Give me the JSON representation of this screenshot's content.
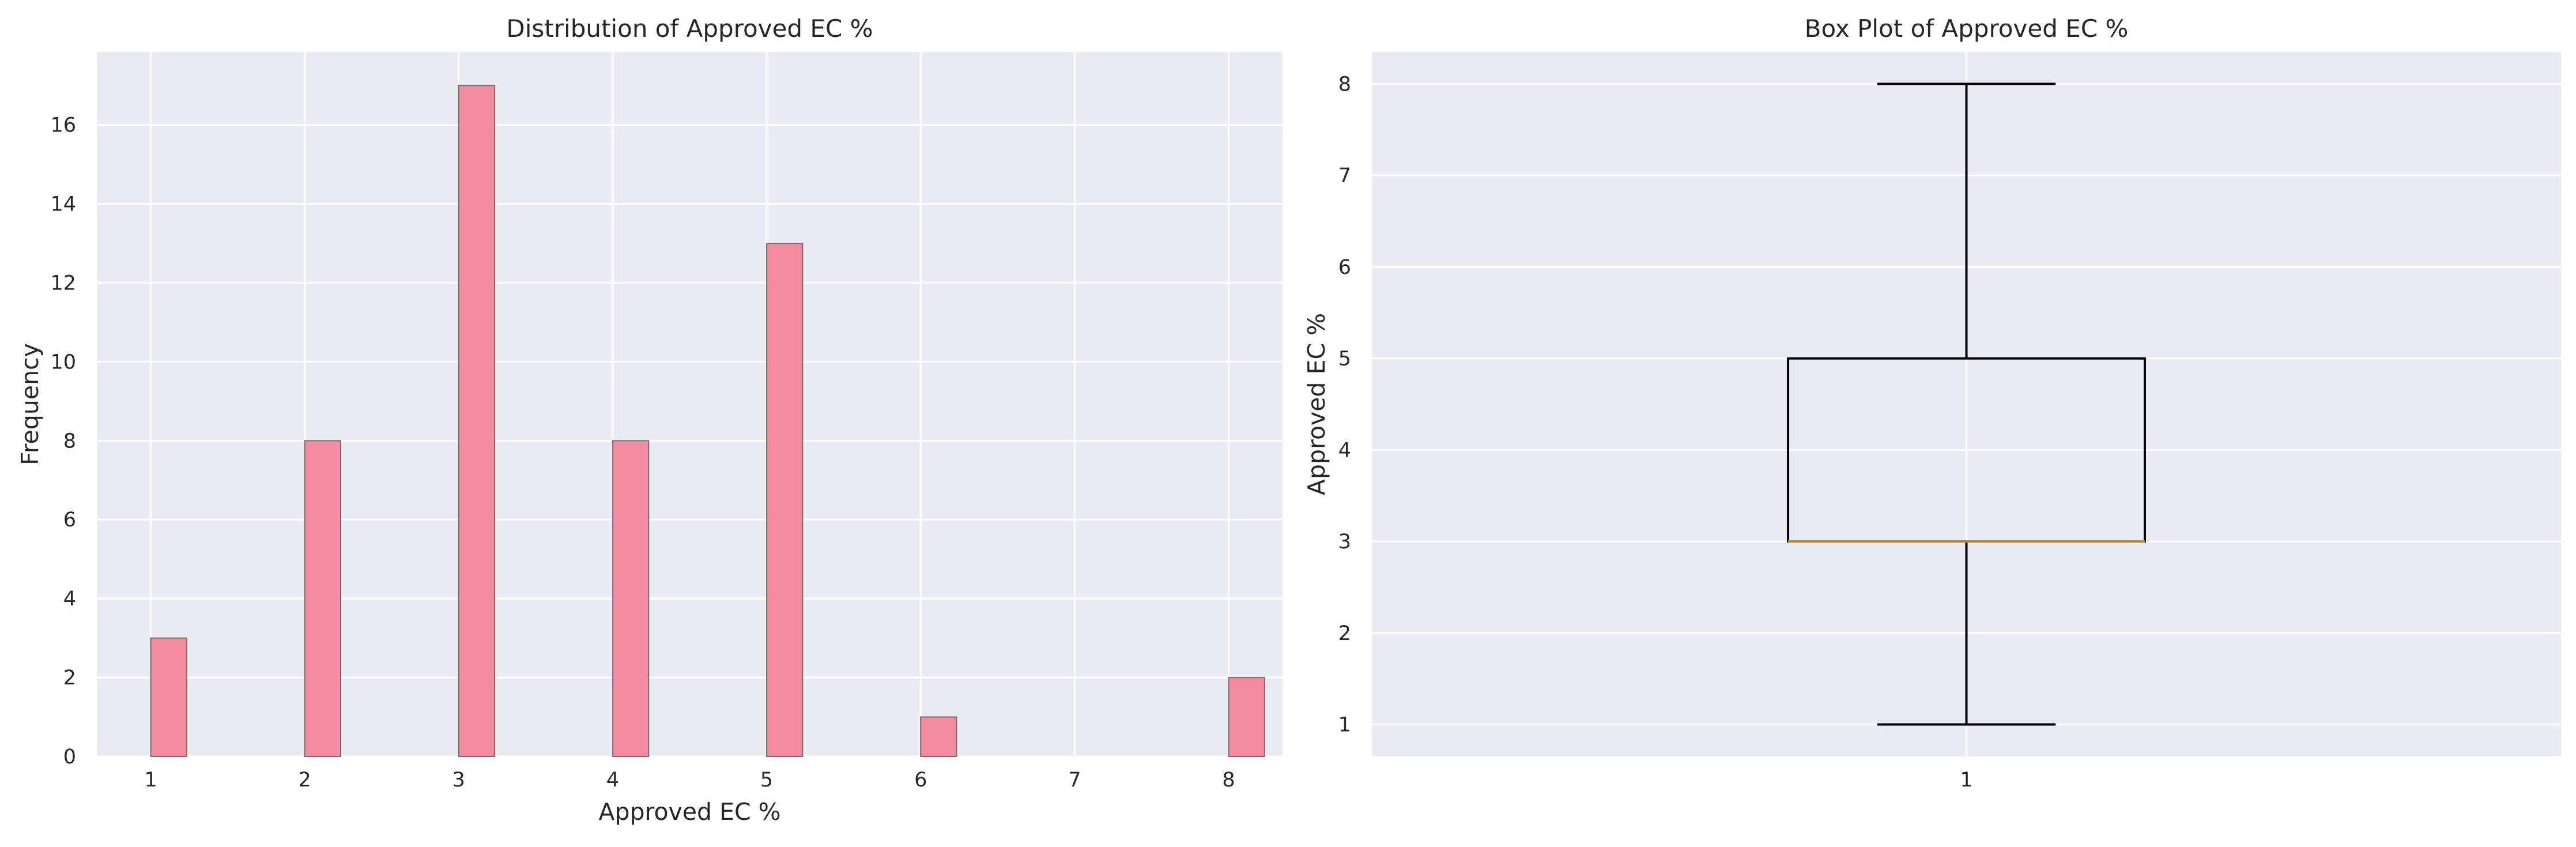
{
  "chart_data": [
    {
      "type": "bar",
      "title": "Distribution of Approved EC %",
      "xlabel": "Approved EC %",
      "ylabel": "Frequency",
      "xlim": [
        0.65,
        8.35
      ],
      "ylim": [
        0,
        17.85
      ],
      "xticks": [
        1,
        2,
        3,
        4,
        5,
        6,
        7,
        8
      ],
      "yticks": [
        0,
        2,
        4,
        6,
        8,
        10,
        12,
        14,
        16
      ],
      "bin_width": 0.2333,
      "x": [
        1,
        2,
        3,
        4,
        5,
        6,
        8
      ],
      "values": [
        3,
        8,
        17,
        8,
        13,
        1,
        2
      ],
      "bar_color": "#f38ba0",
      "edge_color": "#7a6a6e",
      "grid": true,
      "background": "#eaeaf2"
    },
    {
      "type": "box",
      "title": "Box Plot of Approved EC %",
      "xlabel": "",
      "ylabel": "Approved EC %",
      "ylim": [
        0.65,
        8.35
      ],
      "xticks": [
        "1"
      ],
      "yticks": [
        1,
        2,
        3,
        4,
        5,
        6,
        7,
        8
      ],
      "stats": {
        "min": 1,
        "q1": 3,
        "median": 3,
        "q3": 5,
        "max": 8
      },
      "median_color": "#b08a3a",
      "grid": true,
      "background": "#eaeaf2"
    }
  ]
}
